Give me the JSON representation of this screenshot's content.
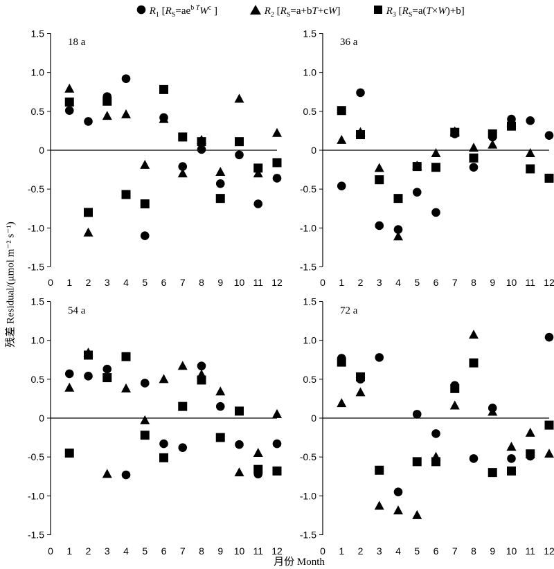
{
  "legend": {
    "r1_name": "R",
    "r1_sub": "1",
    "r1_open": "[",
    "r1_rs": "R",
    "r1_rs_sub": "S",
    "r1_eq": "=ae",
    "r1_sup1": "b",
    "r1_sup2": "T",
    "r1_W": "W",
    "r1_sup3": "c",
    "r1_close": "]",
    "r2_name": "R",
    "r2_sub": "2",
    "r2_open": "[",
    "r2_rs": "R",
    "r2_rs_sub": "S",
    "r2_eq": "=a+b",
    "r2_T": "T",
    "r2_c": "+c",
    "r2_W": "W",
    "r2_close": "]",
    "r3_name": "R",
    "r3_sub": "3",
    "r3_open": "[",
    "r3_rs": "R",
    "r3_rs_sub": "S",
    "r3_eq": "=a(",
    "r3_T": "T",
    "r3_x": "×",
    "r3_W": "W",
    "r3_end": ")+b]"
  },
  "ylabel": "残差 Residual/(μmol m⁻² s⁻¹)",
  "xlabel": "月份 Month",
  "chart_data": [
    {
      "type": "scatter",
      "label": "18 a",
      "x": [
        1,
        2,
        3,
        4,
        5,
        6,
        7,
        8,
        9,
        10,
        11,
        12
      ],
      "xlim": [
        0,
        12
      ],
      "ylim": [
        -1.5,
        1.5
      ],
      "xticks": [
        "0",
        "1",
        "2",
        "3",
        "4",
        "5",
        "6",
        "7",
        "8",
        "9",
        "10",
        "11",
        "12"
      ],
      "yticks": [
        "1.5",
        "1.0",
        "0.5",
        "0",
        "-0.5",
        "-1.0",
        "-1.5"
      ],
      "series": [
        {
          "name": "R1",
          "marker": "circle",
          "values": [
            0.51,
            0.37,
            0.69,
            0.92,
            -1.1,
            0.42,
            -0.21,
            0.01,
            -0.43,
            -0.06,
            -0.69,
            -0.36
          ]
        },
        {
          "name": "R2",
          "marker": "triangle",
          "values": [
            0.79,
            -1.06,
            0.44,
            0.46,
            -0.19,
            0.4,
            -0.3,
            0.13,
            -0.28,
            0.66,
            -0.3,
            0.22
          ]
        },
        {
          "name": "R3",
          "marker": "square",
          "values": [
            0.62,
            -0.8,
            0.63,
            -0.57,
            -0.69,
            0.78,
            0.17,
            0.11,
            -0.62,
            0.11,
            -0.23,
            -0.16
          ]
        }
      ]
    },
    {
      "type": "scatter",
      "label": "36 a",
      "x": [
        1,
        2,
        3,
        4,
        5,
        6,
        7,
        8,
        9,
        10,
        11,
        12
      ],
      "xlim": [
        0,
        12
      ],
      "ylim": [
        -1.5,
        1.5
      ],
      "xticks": [
        "0",
        "1",
        "2",
        "3",
        "4",
        "5",
        "6",
        "7",
        "8",
        "9",
        "10",
        "11",
        "12"
      ],
      "yticks": [
        "1.5",
        "1.0",
        "0.5",
        "0",
        "-0.5",
        "-1.0",
        "-1.5"
      ],
      "series": [
        {
          "name": "R1",
          "marker": "circle",
          "values": [
            -0.46,
            0.74,
            -0.97,
            -1.02,
            -0.54,
            -0.8,
            0.21,
            -0.22,
            0.17,
            0.4,
            0.38,
            0.19
          ]
        },
        {
          "name": "R2",
          "marker": "triangle",
          "values": [
            0.13,
            0.23,
            -0.23,
            -1.11,
            -0.2,
            -0.04,
            0.24,
            0.03,
            0.07,
            0.35,
            -0.04,
            null
          ]
        },
        {
          "name": "R3",
          "marker": "square",
          "values": [
            0.51,
            0.2,
            -0.38,
            -0.62,
            -0.21,
            -0.22,
            0.23,
            -0.1,
            0.21,
            0.31,
            -0.24,
            -0.36
          ]
        }
      ]
    },
    {
      "type": "scatter",
      "label": "54 a",
      "x": [
        1,
        2,
        3,
        4,
        5,
        6,
        7,
        8,
        9,
        10,
        11,
        12
      ],
      "xlim": [
        0,
        12
      ],
      "ylim": [
        -1.5,
        1.5
      ],
      "xticks": [
        "0",
        "1",
        "2",
        "3",
        "4",
        "5",
        "6",
        "7",
        "8",
        "9",
        "10",
        "11",
        "12"
      ],
      "yticks": [
        "1.5",
        "1.0",
        "0.5",
        "0",
        "-0.5",
        "-1.0",
        "-1.5"
      ],
      "series": [
        {
          "name": "R1",
          "marker": "circle",
          "values": [
            0.57,
            0.54,
            0.63,
            -0.73,
            0.45,
            -0.33,
            -0.38,
            0.67,
            0.15,
            -0.34,
            -0.72,
            -0.33
          ]
        },
        {
          "name": "R2",
          "marker": "triangle",
          "values": [
            0.39,
            0.84,
            -0.72,
            0.38,
            -0.03,
            0.5,
            0.67,
            0.56,
            0.34,
            -0.7,
            -0.45,
            0.05
          ]
        },
        {
          "name": "R3",
          "marker": "square",
          "values": [
            -0.45,
            0.81,
            0.52,
            0.79,
            -0.22,
            -0.51,
            0.15,
            0.49,
            -0.25,
            0.09,
            -0.66,
            -0.68
          ]
        }
      ]
    },
    {
      "type": "scatter",
      "label": "72 a",
      "x": [
        1,
        2,
        3,
        4,
        5,
        6,
        7,
        8,
        9,
        10,
        11,
        12
      ],
      "xlim": [
        0,
        12
      ],
      "ylim": [
        -1.5,
        1.5
      ],
      "xticks": [
        "0",
        "1",
        "2",
        "3",
        "4",
        "5",
        "6",
        "7",
        "8",
        "9",
        "10",
        "11",
        "12"
      ],
      "yticks": [
        "1.5",
        "1.0",
        "0.5",
        "0",
        "-0.5",
        "-1.0",
        "-1.5"
      ],
      "series": [
        {
          "name": "R1",
          "marker": "circle",
          "values": [
            0.77,
            0.5,
            0.78,
            -0.95,
            0.05,
            -0.2,
            0.42,
            -0.52,
            0.13,
            -0.52,
            -0.49,
            1.04
          ]
        },
        {
          "name": "R2",
          "marker": "triangle",
          "values": [
            0.19,
            0.33,
            -1.13,
            -1.19,
            -1.25,
            -0.5,
            0.16,
            1.07,
            0.08,
            -0.37,
            -0.19,
            -0.46
          ]
        },
        {
          "name": "R3",
          "marker": "square",
          "values": [
            0.72,
            0.53,
            -0.67,
            null,
            -0.56,
            -0.56,
            0.38,
            0.71,
            -0.7,
            -0.68,
            -0.46,
            -0.09
          ]
        }
      ]
    }
  ]
}
